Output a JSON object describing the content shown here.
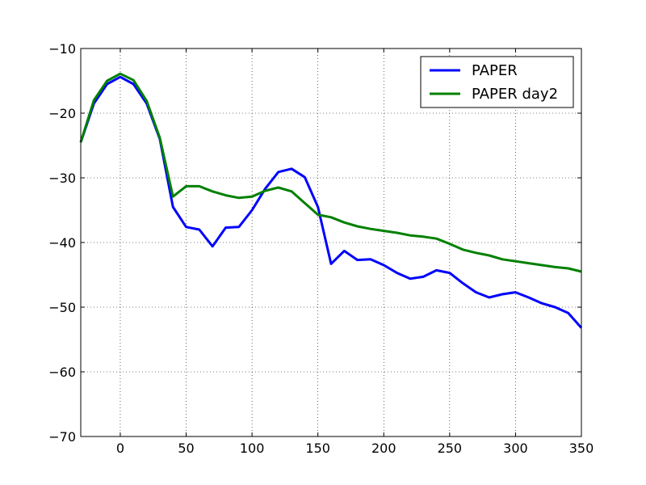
{
  "chart_data": {
    "type": "line",
    "title": "",
    "xlabel": "",
    "ylabel": "",
    "xlim": [
      -30,
      350
    ],
    "ylim": [
      -70,
      -10
    ],
    "xticks": [
      0,
      50,
      100,
      150,
      200,
      250,
      300,
      350
    ],
    "yticks": [
      -70,
      -60,
      -50,
      -40,
      -30,
      -20,
      -10
    ],
    "xtick_labels": [
      "0",
      "50",
      "100",
      "150",
      "200",
      "250",
      "300",
      "350"
    ],
    "ytick_labels": [
      "−70",
      "−60",
      "−50",
      "−40",
      "−30",
      "−20",
      "−10"
    ],
    "grid": true,
    "legend_position": "top-right",
    "series": [
      {
        "name": "PAPER",
        "color": "#0000ff",
        "x": [
          -30,
          -20,
          -10,
          0,
          10,
          20,
          30,
          40,
          50,
          60,
          70,
          80,
          90,
          100,
          110,
          120,
          130,
          140,
          150,
          160,
          170,
          180,
          190,
          200,
          210,
          220,
          230,
          240,
          250,
          260,
          270,
          280,
          290,
          300,
          310,
          320,
          330,
          340,
          350
        ],
        "y": [
          -24.5,
          -18.5,
          -15.5,
          -14.4,
          -15.5,
          -18.5,
          -24.0,
          -34.5,
          -37.6,
          -38.0,
          -40.6,
          -37.7,
          -37.6,
          -35.0,
          -31.7,
          -29.1,
          -28.6,
          -29.9,
          -34.5,
          -43.3,
          -41.3,
          -42.7,
          -42.6,
          -43.5,
          -44.7,
          -45.6,
          -45.3,
          -44.3,
          -44.7,
          -46.3,
          -47.7,
          -48.5,
          -48.0,
          -47.7,
          -48.5,
          -49.4,
          -50.0,
          -50.9,
          -53.2
        ]
      },
      {
        "name": "PAPER day2",
        "color": "#008000",
        "x": [
          -30,
          -20,
          -10,
          0,
          10,
          20,
          30,
          40,
          50,
          60,
          70,
          80,
          90,
          100,
          110,
          120,
          130,
          140,
          150,
          160,
          170,
          180,
          190,
          200,
          210,
          220,
          230,
          240,
          250,
          260,
          270,
          280,
          290,
          300,
          310,
          320,
          330,
          340,
          350
        ],
        "y": [
          -24.5,
          -18.0,
          -15.0,
          -13.9,
          -14.9,
          -18.1,
          -23.8,
          -32.9,
          -31.3,
          -31.3,
          -32.1,
          -32.7,
          -33.1,
          -32.9,
          -32.0,
          -31.5,
          -32.1,
          -33.9,
          -35.7,
          -36.1,
          -36.9,
          -37.5,
          -37.9,
          -38.2,
          -38.5,
          -38.9,
          -39.1,
          -39.4,
          -40.2,
          -41.1,
          -41.6,
          -42.0,
          -42.6,
          -42.9,
          -43.2,
          -43.5,
          -43.8,
          -44.0,
          -44.5
        ]
      }
    ]
  }
}
